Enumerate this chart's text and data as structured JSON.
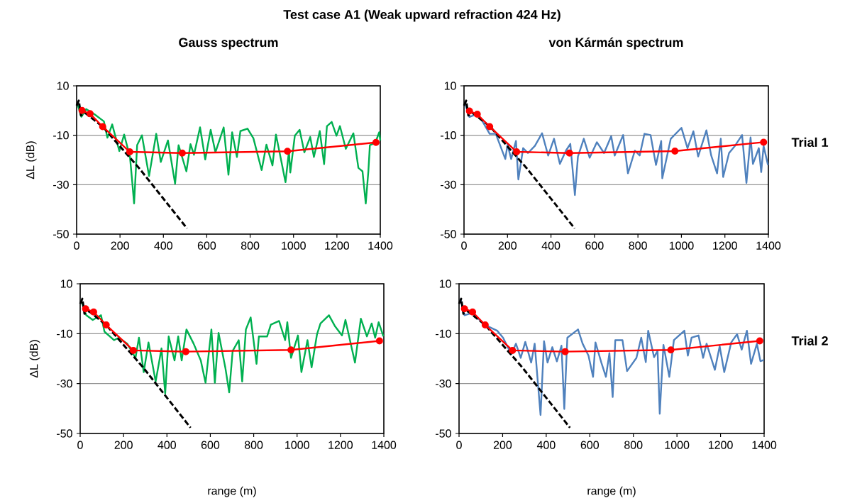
{
  "chart_data": [
    {
      "type": "line",
      "title": "Test case A1  (Weak upward refraction 424 Hz)",
      "subtitle": "Gauss spectrum",
      "ylabel": "ΔL (dB)",
      "xlim": [
        0,
        1400
      ],
      "ylim": [
        -50,
        10
      ],
      "xticks": [
        0,
        200,
        400,
        600,
        800,
        1000,
        1200,
        1400
      ],
      "yticks": [
        -50,
        -30,
        -10,
        10
      ],
      "grid": "y",
      "series": [
        {
          "color": "#00b050",
          "x": [
            5,
            22,
            44,
            82,
            126,
            142,
            164,
            197,
            219,
            246,
            255,
            265,
            279,
            301,
            334,
            367,
            388,
            421,
            454,
            470,
            506,
            525,
            541,
            569,
            593,
            618,
            640,
            678,
            700,
            717,
            739,
            755,
            788,
            815,
            853,
            875,
            903,
            919,
            941,
            963,
            979,
            985,
            1006,
            1028,
            1050,
            1077,
            1094,
            1121,
            1141,
            1154,
            1176,
            1198,
            1214,
            1241,
            1276,
            1299,
            1318,
            1333,
            1345,
            1352,
            1377,
            1395,
            1400
          ],
          "values": [
            2.3,
            -2.5,
            0.6,
            -1.5,
            -4.4,
            -11,
            -5.6,
            -16.4,
            -9.7,
            -18.8,
            -27.5,
            -37.6,
            -14,
            -10,
            -26.5,
            -9.4,
            -20.8,
            -12.1,
            -29.6,
            -14,
            -24.6,
            -13.6,
            -17.9,
            -6.8,
            -19.8,
            -7.8,
            -16.9,
            -6.8,
            -26,
            -8.8,
            -18.8,
            -8.3,
            -7.3,
            -11.2,
            -24.1,
            -13.8,
            -22.2,
            -9.7,
            -19.3,
            -29,
            -16.4,
            -25.1,
            -10.2,
            -7.8,
            -16.9,
            -10.7,
            -18.8,
            -8.3,
            -21.7,
            -6.3,
            -4.6,
            -10.2,
            -6.3,
            -15.5,
            -9.2,
            -23.2,
            -24.6,
            -37.6,
            -24.6,
            -14,
            -13.1,
            -8.8,
            -12.1
          ]
        },
        {
          "color": "#000000",
          "line_style": "dashed",
          "x": [
            0,
            10,
            20,
            40,
            120,
            290,
            509
          ],
          "values": [
            2,
            4,
            -2,
            -1,
            -6.5,
            -23.5,
            -47.7
          ]
        },
        {
          "color": "#ff0000",
          "marker": "circle",
          "x": [
            25,
            62,
            120,
            245,
            487,
            972,
            1380
          ],
          "values": [
            0,
            -1.3,
            -6.5,
            -16.7,
            -17.2,
            -16.5,
            -12.9
          ]
        }
      ]
    },
    {
      "type": "line",
      "subtitle": "von Kármán spectrum",
      "annotations": [
        "Trial 1"
      ],
      "xlim": [
        0,
        1400
      ],
      "ylim": [
        -50,
        10
      ],
      "xticks": [
        0,
        200,
        400,
        600,
        800,
        1000,
        1200,
        1400
      ],
      "yticks": [
        -50,
        -30,
        -10,
        10
      ],
      "grid": "y",
      "series": [
        {
          "color": "#4f81bd",
          "x": [
            7,
            25,
            64,
            118,
            146,
            190,
            200,
            217,
            239,
            250,
            272,
            294,
            326,
            359,
            387,
            414,
            441,
            469,
            489,
            510,
            524,
            551,
            578,
            611,
            644,
            677,
            693,
            732,
            754,
            786,
            808,
            830,
            858,
            883,
            907,
            912,
            951,
            1000,
            1028,
            1055,
            1077,
            1115,
            1137,
            1164,
            1181,
            1192,
            1219,
            1246,
            1279,
            1299,
            1318,
            1329,
            1356,
            1367,
            1378,
            1398
          ],
          "values": [
            2.2,
            -2.6,
            -1.2,
            -9.4,
            -9.4,
            -19.6,
            -13.8,
            -19.6,
            -12.3,
            -27.9,
            -15.2,
            -17.2,
            -14.3,
            -9.2,
            -18.2,
            -11.4,
            -21.6,
            -16.2,
            -13.5,
            -34.2,
            -18.6,
            -11.4,
            -19.1,
            -12.8,
            -17.2,
            -10.4,
            -18.2,
            -9.9,
            -25.4,
            -16.2,
            -18.2,
            -9.4,
            -9.9,
            -22,
            -12.3,
            -27.4,
            -11.4,
            -7,
            -15.2,
            -8.4,
            -18.6,
            -8,
            -18.2,
            -25.4,
            -11.4,
            -26.9,
            -17.2,
            -14.3,
            -9.9,
            -29.3,
            -10.9,
            -21.6,
            -15.2,
            -24.9,
            -14.3,
            -22
          ]
        },
        {
          "color": "#000000",
          "line_style": "dashed",
          "x": [
            0,
            10,
            20,
            40,
            120,
            290,
            509
          ],
          "values": [
            2,
            4,
            -2,
            -1,
            -6.5,
            -23.5,
            -47.7
          ]
        },
        {
          "color": "#ff0000",
          "marker": "circle",
          "x": [
            25,
            61,
            118,
            242,
            485,
            970,
            1378
          ],
          "values": [
            -0.2,
            -1.5,
            -6.5,
            -16.7,
            -17.2,
            -16.4,
            -12.8
          ]
        }
      ]
    },
    {
      "type": "line",
      "xlabel": "range (m)",
      "ylabel": "ΔL (dB)",
      "xlim": [
        0,
        1400
      ],
      "ylim": [
        -50,
        10
      ],
      "xticks": [
        0,
        200,
        400,
        600,
        800,
        1000,
        1200,
        1400
      ],
      "yticks": [
        -50,
        -30,
        -10,
        10
      ],
      "grid": "y",
      "series": [
        {
          "color": "#00b050",
          "x": [
            7,
            28,
            58,
            96,
            112,
            156,
            178,
            217,
            255,
            271,
            293,
            315,
            348,
            375,
            392,
            408,
            435,
            452,
            468,
            490,
            523,
            556,
            578,
            605,
            621,
            638,
            670,
            687,
            703,
            731,
            747,
            764,
            786,
            813,
            824,
            862,
            879,
            917,
            945,
            955,
            972,
            1004,
            1020,
            1048,
            1067,
            1092,
            1108,
            1147,
            1174,
            1207,
            1223,
            1267,
            1294,
            1322,
            1344,
            1360,
            1376,
            1398
          ],
          "values": [
            2.7,
            -2.6,
            -4.5,
            -2.6,
            -9.2,
            -12.6,
            -11.6,
            -14,
            -19.7,
            -11.6,
            -25.4,
            -13.5,
            -29.2,
            -15.9,
            -34,
            -11.1,
            -20.7,
            -11.1,
            -20.7,
            -8.3,
            -14,
            -20.7,
            -29.7,
            -8.3,
            -29.7,
            -9.7,
            -24,
            -33.5,
            -16.9,
            -12.6,
            -29.2,
            -8.3,
            -3.5,
            -22.1,
            -11.1,
            -11.1,
            -6.4,
            -4.9,
            -12.6,
            -5.4,
            -19.7,
            -10.7,
            -25.4,
            -12.6,
            -23.5,
            -10.2,
            -5.9,
            -2.6,
            -6.9,
            -10.7,
            -4.5,
            -21.6,
            -4,
            -11.1,
            -5.9,
            -11.6,
            -5.4,
            -11.1
          ]
        },
        {
          "color": "#000000",
          "line_style": "dashed",
          "x": [
            0,
            10,
            20,
            40,
            120,
            290,
            509
          ],
          "values": [
            2,
            4,
            -2,
            -1,
            -6.5,
            -23.5,
            -47.7
          ]
        },
        {
          "color": "#ff0000",
          "marker": "circle",
          "x": [
            25,
            62,
            120,
            245,
            487,
            972,
            1380
          ],
          "values": [
            0,
            -1.3,
            -6.5,
            -16.7,
            -17.2,
            -16.5,
            -12.9
          ]
        }
      ]
    },
    {
      "type": "line",
      "xlabel": "range (m)",
      "annotations": [
        "Trial 2"
      ],
      "xlim": [
        0,
        1400
      ],
      "ylim": [
        -50,
        10
      ],
      "xticks": [
        0,
        200,
        400,
        600,
        800,
        1000,
        1200,
        1400
      ],
      "yticks": [
        -50,
        -30,
        -10,
        10
      ],
      "grid": "y",
      "series": [
        {
          "color": "#4f81bd",
          "x": [
            6,
            25,
            62,
            116,
            175,
            202,
            240,
            261,
            283,
            304,
            331,
            347,
            374,
            390,
            406,
            428,
            449,
            470,
            483,
            497,
            546,
            567,
            594,
            615,
            626,
            653,
            674,
            690,
            705,
            717,
            750,
            771,
            814,
            836,
            857,
            868,
            895,
            911,
            921,
            938,
            965,
            986,
            1034,
            1050,
            1067,
            1099,
            1120,
            1136,
            1174,
            1196,
            1217,
            1249,
            1276,
            1297,
            1321,
            1340,
            1367,
            1383,
            1399
          ],
          "values": [
            4.1,
            -2.6,
            -1.6,
            -6.4,
            -8.8,
            -11.6,
            -18.3,
            -14,
            -19.7,
            -13.3,
            -21.6,
            -14,
            -42.6,
            -13,
            -21.6,
            -15.4,
            -21.1,
            -14.8,
            -40.2,
            -11.6,
            -8.3,
            -14,
            -18.8,
            -27.3,
            -13.5,
            -21.6,
            -27.3,
            -17.8,
            -35.4,
            -12.6,
            -12.6,
            -25,
            -19.7,
            -11.6,
            -21.4,
            -8.8,
            -19.4,
            -16.9,
            -42.1,
            -14.5,
            -27.3,
            -12.6,
            -8.8,
            -18.8,
            -11.6,
            -10.7,
            -19.7,
            -14,
            -24.5,
            -15,
            -25.4,
            -13.5,
            -10.2,
            -16.4,
            -8.8,
            -22.1,
            -14,
            -21,
            -20.5
          ]
        },
        {
          "color": "#000000",
          "line_style": "dashed",
          "x": [
            0,
            10,
            20,
            40,
            120,
            290,
            509
          ],
          "values": [
            2,
            4,
            -2,
            -1,
            -6.5,
            -23.5,
            -47.7
          ]
        },
        {
          "color": "#ff0000",
          "marker": "circle",
          "x": [
            25,
            62,
            120,
            245,
            487,
            972,
            1380
          ],
          "values": [
            0,
            -1.3,
            -6.5,
            -16.7,
            -17.2,
            -16.5,
            -12.9
          ]
        }
      ]
    }
  ]
}
